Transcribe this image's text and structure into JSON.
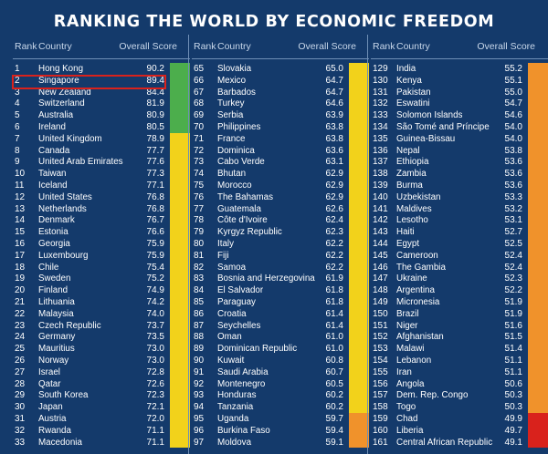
{
  "title": "RANKING THE WORLD BY ECONOMIC FREEDOM",
  "headers": {
    "rank": "Rank",
    "country": "Country",
    "score": "Overall Score"
  },
  "colors": {
    "green": "#4cae4c",
    "yellow": "#f2d21b",
    "orange": "#f0922b",
    "red": "#d9221c"
  },
  "columns": [
    {
      "rows": [
        [
          "1",
          "Hong Kong",
          "90.2",
          "green"
        ],
        [
          "2",
          "Singapore",
          "89.4",
          "green"
        ],
        [
          "3",
          "New Zealand",
          "84.4",
          "green"
        ],
        [
          "4",
          "Switzerland",
          "81.9",
          "green"
        ],
        [
          "5",
          "Australia",
          "80.9",
          "green"
        ],
        [
          "6",
          "Ireland",
          "80.5",
          "green"
        ],
        [
          "7",
          "United Kingdom",
          "78.9",
          "yellow"
        ],
        [
          "8",
          "Canada",
          "77.7",
          "yellow"
        ],
        [
          "9",
          "United Arab Emirates",
          "77.6",
          "yellow"
        ],
        [
          "10",
          "Taiwan",
          "77.3",
          "yellow"
        ],
        [
          "11",
          "Iceland",
          "77.1",
          "yellow"
        ],
        [
          "12",
          "United States",
          "76.8",
          "yellow"
        ],
        [
          "13",
          "Netherlands",
          "76.8",
          "yellow"
        ],
        [
          "14",
          "Denmark",
          "76.7",
          "yellow"
        ],
        [
          "15",
          "Estonia",
          "76.6",
          "yellow"
        ],
        [
          "16",
          "Georgia",
          "75.9",
          "yellow"
        ],
        [
          "17",
          "Luxembourg",
          "75.9",
          "yellow"
        ],
        [
          "18",
          "Chile",
          "75.4",
          "yellow"
        ],
        [
          "19",
          "Sweden",
          "75.2",
          "yellow"
        ],
        [
          "20",
          "Finland",
          "74.9",
          "yellow"
        ],
        [
          "21",
          "Lithuania",
          "74.2",
          "yellow"
        ],
        [
          "22",
          "Malaysia",
          "74.0",
          "yellow"
        ],
        [
          "23",
          "Czech Republic",
          "73.7",
          "yellow"
        ],
        [
          "24",
          "Germany",
          "73.5",
          "yellow"
        ],
        [
          "25",
          "Mauritius",
          "73.0",
          "yellow"
        ],
        [
          "26",
          "Norway",
          "73.0",
          "yellow"
        ],
        [
          "27",
          "Israel",
          "72.8",
          "yellow"
        ],
        [
          "28",
          "Qatar",
          "72.6",
          "yellow"
        ],
        [
          "29",
          "South Korea",
          "72.3",
          "yellow"
        ],
        [
          "30",
          "Japan",
          "72.1",
          "yellow"
        ],
        [
          "31",
          "Austria",
          "72.0",
          "yellow"
        ],
        [
          "32",
          "Rwanda",
          "71.1",
          "yellow"
        ],
        [
          "33",
          "Macedonia",
          "71.1",
          "yellow"
        ]
      ]
    },
    {
      "rows": [
        [
          "65",
          "Slovakia",
          "65.0",
          "yellow"
        ],
        [
          "66",
          "Mexico",
          "64.7",
          "yellow"
        ],
        [
          "67",
          "Barbados",
          "64.7",
          "yellow"
        ],
        [
          "68",
          "Turkey",
          "64.6",
          "yellow"
        ],
        [
          "69",
          "Serbia",
          "63.9",
          "yellow"
        ],
        [
          "70",
          "Philippines",
          "63.8",
          "yellow"
        ],
        [
          "71",
          "France",
          "63.8",
          "yellow"
        ],
        [
          "72",
          "Dominica",
          "63.6",
          "yellow"
        ],
        [
          "73",
          "Cabo Verde",
          "63.1",
          "yellow"
        ],
        [
          "74",
          "Bhutan",
          "62.9",
          "yellow"
        ],
        [
          "75",
          "Morocco",
          "62.9",
          "yellow"
        ],
        [
          "76",
          "The Bahamas",
          "62.9",
          "yellow"
        ],
        [
          "77",
          "Guatemala",
          "62.6",
          "yellow"
        ],
        [
          "78",
          "Côte d'Ivoire",
          "62.4",
          "yellow"
        ],
        [
          "79",
          "Kyrgyz Republic",
          "62.3",
          "yellow"
        ],
        [
          "80",
          "Italy",
          "62.2",
          "yellow"
        ],
        [
          "81",
          "Fiji",
          "62.2",
          "yellow"
        ],
        [
          "82",
          "Samoa",
          "62.2",
          "yellow"
        ],
        [
          "83",
          "Bosnia and Herzegovina",
          "61.9",
          "yellow"
        ],
        [
          "84",
          "El Salvador",
          "61.8",
          "yellow"
        ],
        [
          "85",
          "Paraguay",
          "61.8",
          "yellow"
        ],
        [
          "86",
          "Croatia",
          "61.4",
          "yellow"
        ],
        [
          "87",
          "Seychelles",
          "61.4",
          "yellow"
        ],
        [
          "88",
          "Oman",
          "61.0",
          "yellow"
        ],
        [
          "89",
          "Dominican Republic",
          "61.0",
          "yellow"
        ],
        [
          "90",
          "Kuwait",
          "60.8",
          "yellow"
        ],
        [
          "91",
          "Saudi Arabia",
          "60.7",
          "yellow"
        ],
        [
          "92",
          "Montenegro",
          "60.5",
          "yellow"
        ],
        [
          "93",
          "Honduras",
          "60.2",
          "yellow"
        ],
        [
          "94",
          "Tanzania",
          "60.2",
          "yellow"
        ],
        [
          "95",
          "Uganda",
          "59.7",
          "orange"
        ],
        [
          "96",
          "Burkina Faso",
          "59.4",
          "orange"
        ],
        [
          "97",
          "Moldova",
          "59.1",
          "orange"
        ]
      ]
    },
    {
      "rows": [
        [
          "129",
          "India",
          "55.2",
          "orange"
        ],
        [
          "130",
          "Kenya",
          "55.1",
          "orange"
        ],
        [
          "131",
          "Pakistan",
          "55.0",
          "orange"
        ],
        [
          "132",
          "Eswatini",
          "54.7",
          "orange"
        ],
        [
          "133",
          "Solomon Islands",
          "54.6",
          "orange"
        ],
        [
          "134",
          "São Tomé and Príncipe",
          "54.0",
          "orange"
        ],
        [
          "135",
          "Guinea-Bissau",
          "54.0",
          "orange"
        ],
        [
          "136",
          "Nepal",
          "53.8",
          "orange"
        ],
        [
          "137",
          "Ethiopia",
          "53.6",
          "orange"
        ],
        [
          "138",
          "Zambia",
          "53.6",
          "orange"
        ],
        [
          "139",
          "Burma",
          "53.6",
          "orange"
        ],
        [
          "140",
          "Uzbekistan",
          "53.3",
          "orange"
        ],
        [
          "141",
          "Maldives",
          "53.2",
          "orange"
        ],
        [
          "142",
          "Lesotho",
          "53.1",
          "orange"
        ],
        [
          "143",
          "Haiti",
          "52.7",
          "orange"
        ],
        [
          "144",
          "Egypt",
          "52.5",
          "orange"
        ],
        [
          "145",
          "Cameroon",
          "52.4",
          "orange"
        ],
        [
          "146",
          "The Gambia",
          "52.4",
          "orange"
        ],
        [
          "147",
          "Ukraine",
          "52.3",
          "orange"
        ],
        [
          "148",
          "Argentina",
          "52.2",
          "orange"
        ],
        [
          "149",
          "Micronesia",
          "51.9",
          "orange"
        ],
        [
          "150",
          "Brazil",
          "51.9",
          "orange"
        ],
        [
          "151",
          "Niger",
          "51.6",
          "orange"
        ],
        [
          "152",
          "Afghanistan",
          "51.5",
          "orange"
        ],
        [
          "153",
          "Malawi",
          "51.4",
          "orange"
        ],
        [
          "154",
          "Lebanon",
          "51.1",
          "orange"
        ],
        [
          "155",
          "Iran",
          "51.1",
          "orange"
        ],
        [
          "156",
          "Angola",
          "50.6",
          "orange"
        ],
        [
          "157",
          "Dem. Rep. Congo",
          "50.3",
          "orange"
        ],
        [
          "158",
          "Togo",
          "50.3",
          "orange"
        ],
        [
          "159",
          "Chad",
          "49.9",
          "red"
        ],
        [
          "160",
          "Liberia",
          "49.7",
          "red"
        ],
        [
          "161",
          "Central African Republic",
          "49.1",
          "red"
        ]
      ]
    }
  ]
}
